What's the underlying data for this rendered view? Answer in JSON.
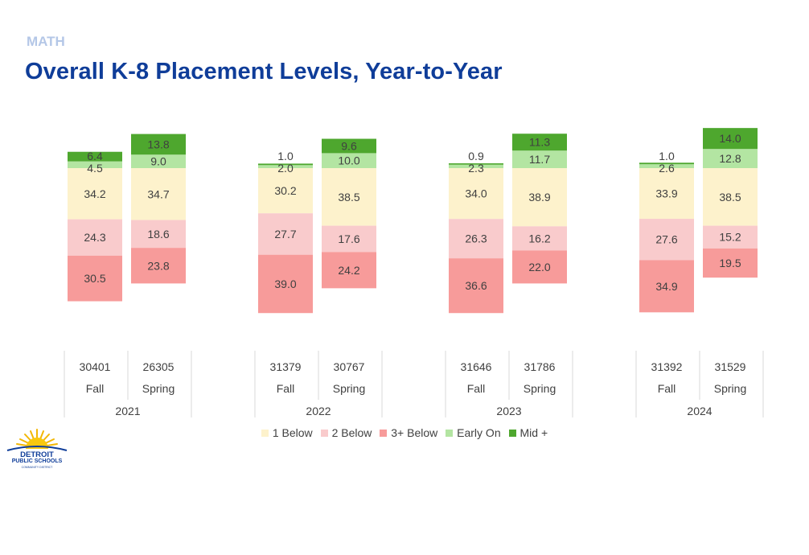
{
  "header": {
    "subject": "MATH",
    "title": "Overall K-8 Placement Levels, Year-to-Year"
  },
  "legend": {
    "items": [
      {
        "label": "1 Below",
        "color": "#fdf2cc"
      },
      {
        "label": "2 Below",
        "color": "#f9cbcc"
      },
      {
        "label": "3+ Below",
        "color": "#f79b9a"
      },
      {
        "label": "Early On",
        "color": "#b3e5a2"
      },
      {
        "label": "Mid +",
        "color": "#4ea72e"
      }
    ]
  },
  "logo": {
    "line1": "DETROIT",
    "line2": "PUBLIC SCHOOLS",
    "line3": "COMMUNITY DISTRICT"
  },
  "chart_data": {
    "type": "bar",
    "stacking": "diverging",
    "groups": [
      {
        "year": "2021",
        "bars": [
          {
            "season": "Fall",
            "n": "30401",
            "one_below": 34.2,
            "two_below": 24.3,
            "three_below": 30.5,
            "early_on": 4.5,
            "mid_plus": 6.4
          },
          {
            "season": "Spring",
            "n": "26305",
            "one_below": 34.7,
            "two_below": 18.6,
            "three_below": 23.8,
            "early_on": 9.0,
            "mid_plus": 13.8
          }
        ]
      },
      {
        "year": "2022",
        "bars": [
          {
            "season": "Fall",
            "n": "31379",
            "one_below": 30.2,
            "two_below": 27.7,
            "three_below": 39.0,
            "early_on": 2.0,
            "mid_plus": 1.0
          },
          {
            "season": "Spring",
            "n": "30767",
            "one_below": 38.5,
            "two_below": 17.6,
            "three_below": 24.2,
            "early_on": 10.0,
            "mid_plus": 9.6
          }
        ]
      },
      {
        "year": "2023",
        "bars": [
          {
            "season": "Fall",
            "n": "31646",
            "one_below": 34.0,
            "two_below": 26.3,
            "three_below": 36.6,
            "early_on": 2.3,
            "mid_plus": 0.9
          },
          {
            "season": "Spring",
            "n": "31786",
            "one_below": 38.9,
            "two_below": 16.2,
            "three_below": 22.0,
            "early_on": 11.7,
            "mid_plus": 11.3
          }
        ]
      },
      {
        "year": "2024",
        "bars": [
          {
            "season": "Fall",
            "n": "31392",
            "one_below": 33.9,
            "two_below": 27.6,
            "three_below": 34.9,
            "early_on": 2.6,
            "mid_plus": 1.0
          },
          {
            "season": "Spring",
            "n": "31529",
            "one_below": 38.5,
            "two_below": 15.2,
            "three_below": 19.5,
            "early_on": 12.8,
            "mid_plus": 14.0
          }
        ]
      }
    ],
    "below_order": [
      "one_below",
      "two_below",
      "three_below"
    ],
    "above_order": [
      "early_on",
      "mid_plus"
    ],
    "colors": {
      "one_below": "#fdf2cc",
      "two_below": "#f9cbcc",
      "three_below": "#f79b9a",
      "early_on": "#b3e5a2",
      "mid_plus": "#4ea72e",
      "baseline": "#d9d9d9",
      "label_text": "#404040",
      "axis_line": "#d9d9d9"
    },
    "legend_position": "bottom",
    "grid": false
  }
}
